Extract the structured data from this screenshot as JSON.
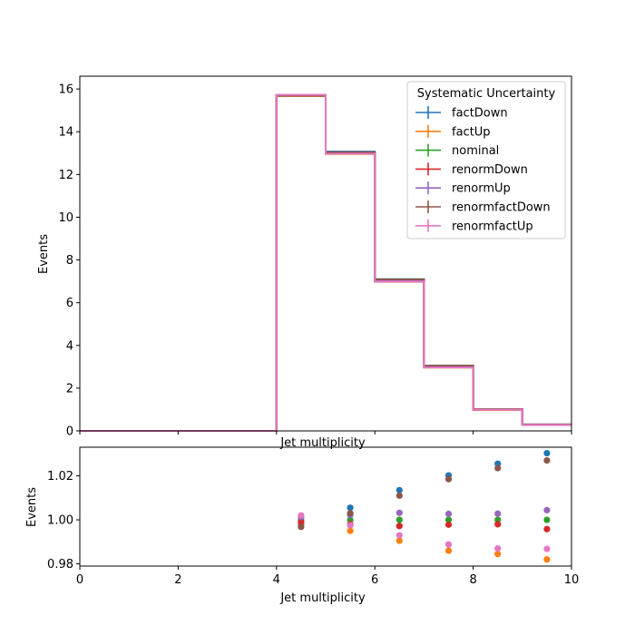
{
  "chart_data": [
    {
      "type": "line",
      "drawstyle": "steps",
      "title": "",
      "xlabel": "Jet multiplicity",
      "ylabel": "Events",
      "xlim": [
        0,
        10
      ],
      "ylim": [
        0,
        16.6
      ],
      "yticks": [
        0,
        2,
        4,
        6,
        8,
        10,
        12,
        14,
        16
      ],
      "ytick_labels": [
        "0",
        "2",
        "4",
        "6",
        "8",
        "10",
        "12",
        "14",
        "16"
      ],
      "grid": false,
      "legend": {
        "title": "Systematic Uncertainty",
        "placement": "top-right"
      },
      "bin_edges": [
        0,
        1,
        2,
        3,
        4,
        5,
        6,
        7,
        8,
        9,
        10
      ],
      "series": [
        {
          "name": "factDown",
          "color": "#1f77b4",
          "values": [
            0,
            0,
            0,
            0,
            15.72,
            13.07,
            7.1,
            3.05,
            1.02,
            0.3
          ]
        },
        {
          "name": "factUp",
          "color": "#ff7f0e",
          "values": [
            0,
            0,
            0,
            0,
            15.67,
            12.96,
            6.98,
            2.96,
            0.98,
            0.28
          ]
        },
        {
          "name": "nominal",
          "color": "#2ca02c",
          "values": [
            0,
            0,
            0,
            0,
            15.7,
            13.0,
            7.04,
            3.0,
            1.0,
            0.29
          ]
        },
        {
          "name": "renormDown",
          "color": "#d62728",
          "values": [
            0,
            0,
            0,
            0,
            15.69,
            12.99,
            7.02,
            2.99,
            0.99,
            0.29
          ]
        },
        {
          "name": "renormUp",
          "color": "#9467bd",
          "values": [
            0,
            0,
            0,
            0,
            15.72,
            13.02,
            7.06,
            3.01,
            1.0,
            0.29
          ]
        },
        {
          "name": "renormfactDown",
          "color": "#8c564b",
          "values": [
            0,
            0,
            0,
            0,
            15.68,
            13.04,
            7.09,
            3.05,
            1.02,
            0.3
          ]
        },
        {
          "name": "renormfactUp",
          "color": "#e377c2",
          "values": [
            0,
            0,
            0,
            0,
            15.73,
            12.97,
            6.99,
            2.97,
            0.99,
            0.28
          ]
        }
      ]
    },
    {
      "type": "scatter",
      "title": "",
      "xlabel": "Jet multiplicity",
      "ylabel": "Events",
      "xlim": [
        0,
        10
      ],
      "ylim": [
        0.979,
        1.033
      ],
      "xticks": [
        0,
        2,
        4,
        6,
        8,
        10
      ],
      "xtick_labels": [
        "0",
        "2",
        "4",
        "6",
        "8",
        "10"
      ],
      "yticks": [
        0.98,
        1.0,
        1.02
      ],
      "ytick_labels": [
        "0.98",
        "1.00",
        "1.02"
      ],
      "grid": false,
      "x": [
        4.5,
        5.5,
        6.5,
        7.5,
        8.5,
        9.5
      ],
      "series": [
        {
          "name": "factDown",
          "color": "#1f77b4",
          "values": [
            0.998,
            1.0055,
            1.0135,
            1.0202,
            1.0255,
            1.0303
          ]
        },
        {
          "name": "factUp",
          "color": "#ff7f0e",
          "values": [
            0.9985,
            0.995,
            0.9905,
            0.986,
            0.9845,
            0.982
          ]
        },
        {
          "name": "nominal",
          "color": "#2ca02c",
          "values": [
            1.0,
            1.0,
            1.0,
            1.0,
            1.0,
            1.0
          ]
        },
        {
          "name": "renormDown",
          "color": "#d62728",
          "values": [
            0.999,
            0.998,
            0.9972,
            0.9978,
            0.998,
            0.9958
          ]
        },
        {
          "name": "renormUp",
          "color": "#9467bd",
          "values": [
            1.0012,
            1.0022,
            1.0032,
            1.0027,
            1.0028,
            1.0044
          ]
        },
        {
          "name": "renormfactDown",
          "color": "#8c564b",
          "values": [
            0.9968,
            1.003,
            1.011,
            1.0185,
            1.0235,
            1.027
          ]
        },
        {
          "name": "renormfactUp",
          "color": "#e377c2",
          "values": [
            1.002,
            0.9975,
            0.993,
            0.9888,
            0.987,
            0.9868
          ]
        }
      ]
    }
  ]
}
